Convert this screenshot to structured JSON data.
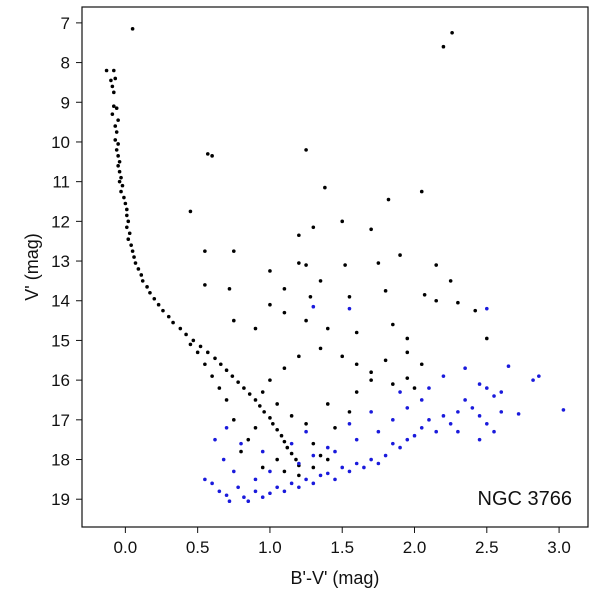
{
  "chart_data": {
    "type": "scatter",
    "title": "",
    "annotation": "NGC 3766",
    "xlabel": "B'-V' (mag)",
    "ylabel": "V' (mag)",
    "xlim": [
      -0.3,
      3.2
    ],
    "ylim": [
      19.7,
      6.6
    ],
    "y_inverted": true,
    "xticks": [
      0.0,
      0.5,
      1.0,
      1.5,
      2.0,
      2.5,
      3.0
    ],
    "xtick_labels": [
      "0.0",
      "0.5",
      "1.0",
      "1.5",
      "2.0",
      "2.5",
      "3.0"
    ],
    "yticks": [
      7,
      8,
      9,
      10,
      11,
      12,
      13,
      14,
      15,
      16,
      17,
      18,
      19
    ],
    "ytick_labels": [
      "7",
      "8",
      "9",
      "10",
      "11",
      "12",
      "13",
      "14",
      "15",
      "16",
      "17",
      "18",
      "19"
    ],
    "grid": false,
    "colors": {
      "members": "#000000",
      "field": "#1a1adc",
      "axis": "#111111"
    },
    "series": [
      {
        "color": "#000000",
        "points": [
          [
            0.05,
            7.15
          ],
          [
            -0.13,
            8.2
          ],
          [
            -0.08,
            8.2
          ],
          [
            -0.07,
            8.4
          ],
          [
            -0.1,
            8.45
          ],
          [
            -0.09,
            8.6
          ],
          [
            -0.08,
            8.75
          ],
          [
            -0.08,
            9.1
          ],
          [
            -0.06,
            9.15
          ],
          [
            -0.09,
            9.3
          ],
          [
            -0.05,
            9.45
          ],
          [
            -0.07,
            9.6
          ],
          [
            -0.06,
            9.75
          ],
          [
            -0.07,
            9.95
          ],
          [
            -0.05,
            10.05
          ],
          [
            -0.06,
            10.2
          ],
          [
            -0.05,
            10.35
          ],
          [
            -0.04,
            10.5
          ],
          [
            -0.05,
            10.6
          ],
          [
            -0.04,
            10.75
          ],
          [
            -0.03,
            10.9
          ],
          [
            -0.04,
            11.0
          ],
          [
            -0.02,
            11.1
          ],
          [
            -0.03,
            11.25
          ],
          [
            -0.01,
            11.4
          ],
          [
            0.0,
            11.55
          ],
          [
            0.01,
            11.7
          ],
          [
            0.01,
            11.85
          ],
          [
            0.02,
            12.0
          ],
          [
            0.01,
            12.15
          ],
          [
            0.03,
            12.3
          ],
          [
            0.02,
            12.45
          ],
          [
            0.04,
            12.6
          ],
          [
            0.05,
            12.75
          ],
          [
            0.06,
            12.9
          ],
          [
            0.07,
            13.05
          ],
          [
            0.09,
            13.2
          ],
          [
            0.11,
            13.35
          ],
          [
            0.12,
            13.5
          ],
          [
            0.15,
            13.65
          ],
          [
            0.17,
            13.8
          ],
          [
            0.2,
            13.95
          ],
          [
            0.23,
            14.1
          ],
          [
            0.26,
            14.25
          ],
          [
            0.3,
            14.4
          ],
          [
            0.33,
            14.55
          ],
          [
            0.38,
            14.7
          ],
          [
            0.42,
            14.85
          ],
          [
            0.47,
            15.0
          ],
          [
            0.52,
            15.15
          ],
          [
            0.57,
            15.3
          ],
          [
            0.62,
            15.45
          ],
          [
            0.66,
            15.6
          ],
          [
            0.7,
            15.75
          ],
          [
            0.74,
            15.9
          ],
          [
            0.78,
            16.05
          ],
          [
            0.82,
            16.2
          ],
          [
            0.86,
            16.35
          ],
          [
            0.9,
            16.5
          ],
          [
            0.93,
            16.65
          ],
          [
            0.96,
            16.8
          ],
          [
            1.0,
            16.95
          ],
          [
            1.02,
            17.1
          ],
          [
            1.05,
            17.25
          ],
          [
            1.08,
            17.4
          ],
          [
            1.1,
            17.55
          ],
          [
            1.12,
            17.7
          ],
          [
            1.15,
            17.85
          ],
          [
            1.18,
            18.0
          ],
          [
            1.2,
            18.15
          ],
          [
            0.57,
            10.3
          ],
          [
            0.6,
            10.35
          ],
          [
            1.25,
            10.2
          ],
          [
            0.45,
            11.75
          ],
          [
            1.38,
            11.15
          ],
          [
            2.05,
            11.25
          ],
          [
            1.82,
            11.45
          ],
          [
            1.7,
            12.2
          ],
          [
            1.2,
            12.35
          ],
          [
            1.3,
            12.15
          ],
          [
            1.5,
            12.0
          ],
          [
            0.55,
            12.75
          ],
          [
            0.75,
            12.75
          ],
          [
            1.2,
            13.05
          ],
          [
            1.25,
            13.1
          ],
          [
            1.35,
            13.5
          ],
          [
            1.52,
            13.1
          ],
          [
            1.75,
            13.05
          ],
          [
            1.9,
            12.85
          ],
          [
            2.15,
            13.1
          ],
          [
            2.25,
            13.5
          ],
          [
            1.0,
            13.25
          ],
          [
            0.55,
            13.6
          ],
          [
            0.72,
            13.7
          ],
          [
            1.1,
            13.7
          ],
          [
            1.28,
            13.9
          ],
          [
            1.55,
            13.9
          ],
          [
            1.8,
            13.75
          ],
          [
            2.07,
            13.85
          ],
          [
            2.15,
            14.0
          ],
          [
            2.3,
            14.05
          ],
          [
            1.0,
            14.1
          ],
          [
            1.1,
            14.3
          ],
          [
            1.25,
            14.5
          ],
          [
            1.4,
            14.7
          ],
          [
            1.6,
            14.8
          ],
          [
            1.85,
            14.6
          ],
          [
            1.95,
            14.95
          ],
          [
            0.75,
            14.5
          ],
          [
            0.9,
            14.7
          ],
          [
            2.2,
            7.6
          ],
          [
            2.26,
            7.25
          ],
          [
            2.42,
            14.25
          ],
          [
            2.5,
            14.95
          ],
          [
            1.5,
            15.4
          ],
          [
            1.6,
            15.6
          ],
          [
            1.7,
            15.8
          ],
          [
            1.8,
            15.5
          ],
          [
            1.95,
            15.3
          ],
          [
            2.05,
            15.6
          ],
          [
            1.35,
            15.2
          ],
          [
            1.2,
            15.4
          ],
          [
            1.1,
            15.7
          ],
          [
            1.0,
            16.0
          ],
          [
            0.95,
            16.3
          ],
          [
            1.05,
            16.6
          ],
          [
            1.15,
            16.9
          ],
          [
            1.25,
            17.1
          ],
          [
            0.9,
            17.2
          ],
          [
            0.85,
            17.5
          ],
          [
            1.3,
            17.6
          ],
          [
            1.35,
            17.9
          ],
          [
            1.05,
            18.0
          ],
          [
            0.95,
            18.2
          ],
          [
            1.1,
            18.3
          ],
          [
            1.2,
            18.4
          ],
          [
            1.3,
            18.2
          ],
          [
            1.4,
            18.0
          ],
          [
            0.8,
            17.8
          ],
          [
            0.75,
            17.0
          ],
          [
            0.7,
            16.5
          ],
          [
            0.65,
            16.2
          ],
          [
            0.6,
            15.9
          ],
          [
            0.55,
            15.6
          ],
          [
            0.5,
            15.3
          ],
          [
            0.45,
            15.1
          ],
          [
            1.6,
            16.3
          ],
          [
            1.7,
            16.0
          ],
          [
            1.85,
            16.1
          ],
          [
            2.0,
            16.2
          ],
          [
            1.55,
            16.8
          ],
          [
            1.45,
            17.2
          ],
          [
            1.4,
            16.6
          ],
          [
            1.95,
            15.95
          ]
        ]
      },
      {
        "color": "#1a1adc",
        "points": [
          [
            0.55,
            18.5
          ],
          [
            0.6,
            18.6
          ],
          [
            0.65,
            18.8
          ],
          [
            0.7,
            18.9
          ],
          [
            0.72,
            19.05
          ],
          [
            0.78,
            18.7
          ],
          [
            0.82,
            18.95
          ],
          [
            0.85,
            19.05
          ],
          [
            0.9,
            18.8
          ],
          [
            0.95,
            18.95
          ],
          [
            1.0,
            18.85
          ],
          [
            1.05,
            18.7
          ],
          [
            1.1,
            18.8
          ],
          [
            1.15,
            18.6
          ],
          [
            1.2,
            18.7
          ],
          [
            1.25,
            18.5
          ],
          [
            1.3,
            18.6
          ],
          [
            1.35,
            18.4
          ],
          [
            1.4,
            18.35
          ],
          [
            1.45,
            18.5
          ],
          [
            1.5,
            18.2
          ],
          [
            1.55,
            18.3
          ],
          [
            1.6,
            18.1
          ],
          [
            1.65,
            18.2
          ],
          [
            1.7,
            18.0
          ],
          [
            1.75,
            18.1
          ],
          [
            1.8,
            17.9
          ],
          [
            1.85,
            17.6
          ],
          [
            1.9,
            17.7
          ],
          [
            1.95,
            17.5
          ],
          [
            2.0,
            17.4
          ],
          [
            2.05,
            17.2
          ],
          [
            2.1,
            17.0
          ],
          [
            2.15,
            17.3
          ],
          [
            2.2,
            16.9
          ],
          [
            2.25,
            17.1
          ],
          [
            2.3,
            16.8
          ],
          [
            2.35,
            16.5
          ],
          [
            2.4,
            16.7
          ],
          [
            2.45,
            16.9
          ],
          [
            2.5,
            17.1
          ],
          [
            2.55,
            16.4
          ],
          [
            2.6,
            16.8
          ],
          [
            2.65,
            15.65
          ],
          [
            2.72,
            16.85
          ],
          [
            2.82,
            16.0
          ],
          [
            2.86,
            15.9
          ],
          [
            3.03,
            16.75
          ],
          [
            2.5,
            14.2
          ],
          [
            1.55,
            14.2
          ],
          [
            1.3,
            14.15
          ],
          [
            2.2,
            15.9
          ],
          [
            2.35,
            15.7
          ],
          [
            2.45,
            16.1
          ],
          [
            1.4,
            17.7
          ],
          [
            1.3,
            17.9
          ],
          [
            1.2,
            18.1
          ],
          [
            1.0,
            18.3
          ],
          [
            0.9,
            18.5
          ],
          [
            0.75,
            18.3
          ],
          [
            0.68,
            18.0
          ],
          [
            0.62,
            17.5
          ],
          [
            0.7,
            17.2
          ],
          [
            0.8,
            17.6
          ],
          [
            0.95,
            17.8
          ],
          [
            1.15,
            17.6
          ],
          [
            1.25,
            17.3
          ],
          [
            1.45,
            17.8
          ],
          [
            1.6,
            17.5
          ],
          [
            1.75,
            17.3
          ],
          [
            1.85,
            17.0
          ],
          [
            1.95,
            16.7
          ],
          [
            2.05,
            16.5
          ],
          [
            1.9,
            16.3
          ],
          [
            1.7,
            16.8
          ],
          [
            1.55,
            17.1
          ],
          [
            2.5,
            16.2
          ],
          [
            2.6,
            16.3
          ],
          [
            2.1,
            16.2
          ],
          [
            2.3,
            17.3
          ],
          [
            2.45,
            17.5
          ],
          [
            2.55,
            17.3
          ]
        ]
      }
    ]
  }
}
